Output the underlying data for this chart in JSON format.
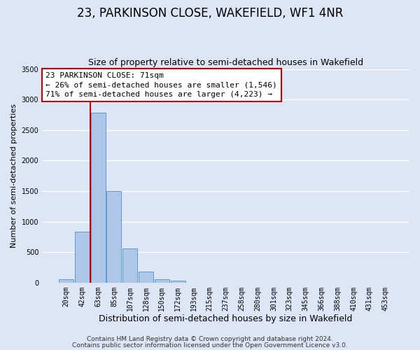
{
  "title": "23, PARKINSON CLOSE, WAKEFIELD, WF1 4NR",
  "subtitle": "Size of property relative to semi-detached houses in Wakefield",
  "xlabel": "Distribution of semi-detached houses by size in Wakefield",
  "ylabel": "Number of semi-detached properties",
  "bar_labels": [
    "20sqm",
    "42sqm",
    "63sqm",
    "85sqm",
    "107sqm",
    "128sqm",
    "150sqm",
    "172sqm",
    "193sqm",
    "215sqm",
    "237sqm",
    "258sqm",
    "280sqm",
    "301sqm",
    "323sqm",
    "345sqm",
    "366sqm",
    "388sqm",
    "410sqm",
    "431sqm",
    "453sqm"
  ],
  "bar_values": [
    60,
    830,
    2780,
    1500,
    555,
    185,
    60,
    30,
    0,
    0,
    0,
    0,
    0,
    0,
    0,
    0,
    0,
    0,
    0,
    0,
    0
  ],
  "bar_color": "#aec6e8",
  "bar_edgecolor": "#5b9bd5",
  "property_line_color": "#cc0000",
  "property_line_index": 1.5,
  "ylim": [
    0,
    3500
  ],
  "yticks": [
    0,
    500,
    1000,
    1500,
    2000,
    2500,
    3000,
    3500
  ],
  "annotation_title": "23 PARKINSON CLOSE: 71sqm",
  "annotation_line1": "← 26% of semi-detached houses are smaller (1,546)",
  "annotation_line2": "71% of semi-detached houses are larger (4,223) →",
  "annotation_box_edgecolor": "#cc0000",
  "footnote1": "Contains HM Land Registry data © Crown copyright and database right 2024.",
  "footnote2": "Contains public sector information licensed under the Open Government Licence v3.0.",
  "background_color": "#dce6f5",
  "plot_background": "#dce6f5",
  "grid_color": "#ffffff",
  "title_fontsize": 12,
  "subtitle_fontsize": 9,
  "xlabel_fontsize": 9,
  "ylabel_fontsize": 8,
  "tick_fontsize": 7,
  "annotation_fontsize": 8,
  "footnote_fontsize": 6.5
}
